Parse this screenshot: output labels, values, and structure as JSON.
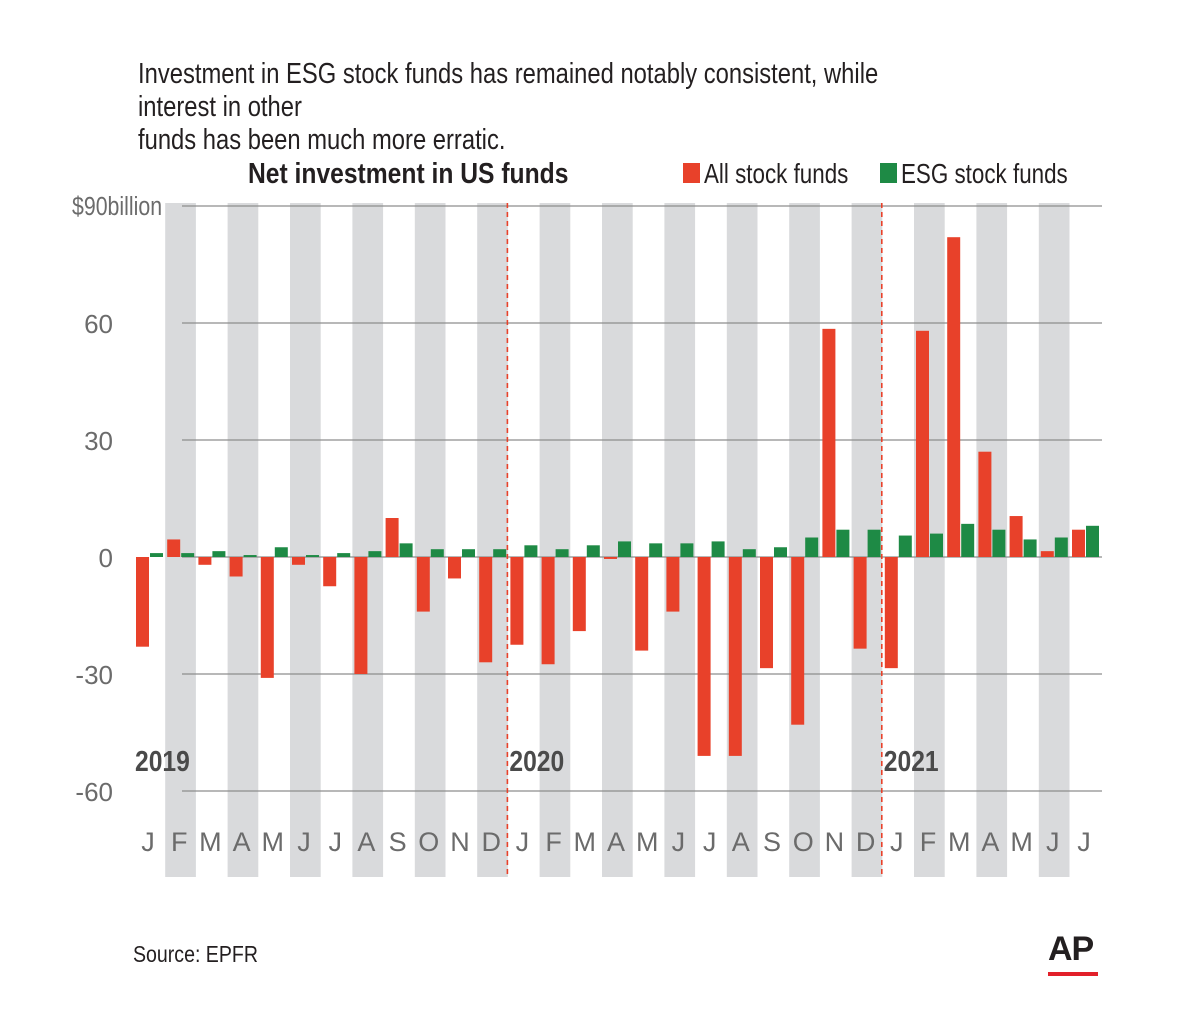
{
  "header": {
    "subtitle": "Investment in ESG stock funds has remained notably consistent, while interest in other\nfunds has been much more erratic."
  },
  "footer": {
    "source": "Source: EPFR",
    "logo_text": "AP"
  },
  "colors": {
    "all_stock": "#e8412a",
    "esg_stock": "#1e8a45",
    "band": "#d9dadc",
    "grid": "#8d8d8d",
    "divider": "#e8412a",
    "ap_red": "#e2202a"
  },
  "chart_data": {
    "type": "bar",
    "title": "Net investment in US funds",
    "ylabel": "",
    "xlabel": "",
    "ylim": [
      -60,
      90
    ],
    "yticks": [
      {
        "value": 90,
        "label": "$90billion"
      },
      {
        "value": 60,
        "label": "60"
      },
      {
        "value": 30,
        "label": "30"
      },
      {
        "value": 0,
        "label": "0"
      },
      {
        "value": -30,
        "label": "-30"
      },
      {
        "value": -60,
        "label": "-60"
      }
    ],
    "categories": [
      "J",
      "F",
      "M",
      "A",
      "M",
      "J",
      "J",
      "A",
      "S",
      "O",
      "N",
      "D",
      "J",
      "F",
      "M",
      "A",
      "M",
      "J",
      "J",
      "A",
      "S",
      "O",
      "N",
      "D",
      "J",
      "F",
      "M",
      "A",
      "M",
      "J",
      "J"
    ],
    "year_labels": [
      {
        "label": "2019",
        "index": 0
      },
      {
        "label": "2020",
        "index": 12
      },
      {
        "label": "2021",
        "index": 24
      }
    ],
    "legend": {
      "position": "top-right"
    },
    "series": [
      {
        "name": "All stock funds",
        "values": [
          -23,
          4.5,
          -2,
          -5,
          -31,
          -2,
          -7.5,
          -30,
          10,
          -14,
          -5.5,
          -27,
          -22.5,
          -27.5,
          -19,
          -0.5,
          -24,
          -14,
          -51,
          -51,
          -28.5,
          -43,
          58.5,
          -23.5,
          -28.5,
          58,
          82,
          27,
          10.5,
          1.5,
          7
        ]
      },
      {
        "name": "ESG stock funds",
        "values": [
          1,
          1,
          1.5,
          0.5,
          2.5,
          0.5,
          1,
          1.5,
          3.5,
          2,
          2,
          2,
          3,
          2,
          3,
          4,
          3.5,
          3.5,
          4,
          2,
          2.5,
          5,
          7,
          7,
          5.5,
          6,
          8.5,
          7,
          4.5,
          5,
          8
        ]
      }
    ]
  }
}
